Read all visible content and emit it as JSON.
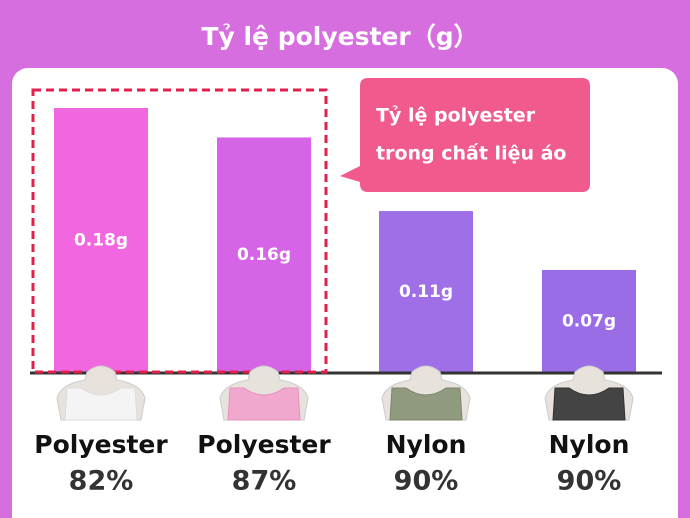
{
  "chart_data": {
    "type": "bar",
    "title": "Tỷ lệ polyester（g）",
    "annotation": [
      "Tỷ lệ polyester",
      "trong chất liệu áo"
    ],
    "categories": [
      "Polyester",
      "Polyester",
      "Nylon",
      "Nylon"
    ],
    "category_percentages": [
      "82%",
      "87%",
      "90%",
      "90%"
    ],
    "values": [
      0.18,
      0.16,
      0.11,
      0.07
    ],
    "value_labels": [
      "0.18g",
      "0.16g",
      "0.11g",
      "0.07g"
    ],
    "colors": [
      "#f067e0",
      "#d565e6",
      "#9f6fe8",
      "#9a6ce6"
    ],
    "highlight": [
      0,
      1
    ]
  }
}
